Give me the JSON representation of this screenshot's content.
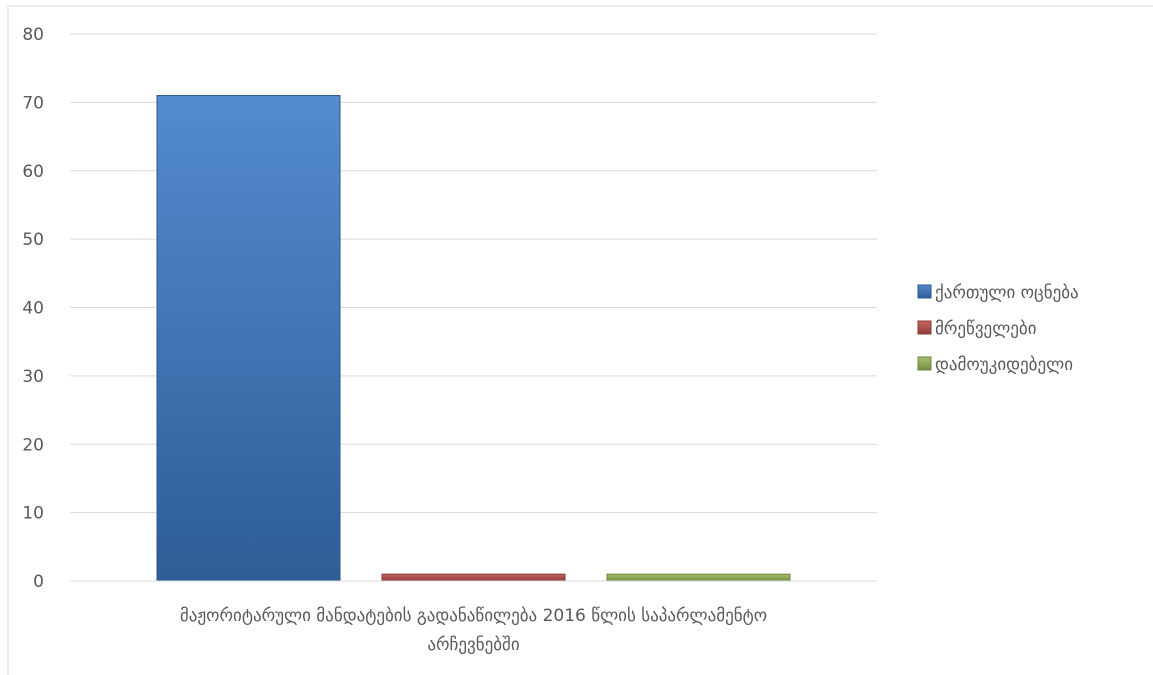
{
  "chart_data": {
    "type": "bar",
    "categories": [
      "მაჟორიტარული მანდატების გადანაწილება 2016 წლის საპარლამენტო არჩევნებში"
    ],
    "category_label_lines": [
      "მაჟორიტარული მანდატების გადანაწილება 2016 წლის საპარლამენტო",
      "არჩევნებში"
    ],
    "series": [
      {
        "name": "ქართული ოცნება",
        "values": [
          71
        ],
        "color": "#3d7cc9"
      },
      {
        "name": "მრეწველები",
        "values": [
          1
        ],
        "color": "#c0504d"
      },
      {
        "name": "დამოუკიდებელი",
        "values": [
          1
        ],
        "color": "#9bbb59"
      }
    ],
    "ylim": [
      0,
      80
    ],
    "y_ticks": [
      "0",
      "10",
      "20",
      "30",
      "40",
      "50",
      "60",
      "70",
      "80"
    ],
    "grid": true,
    "legend_position": "right",
    "title": "",
    "xlabel": "",
    "ylabel": ""
  }
}
